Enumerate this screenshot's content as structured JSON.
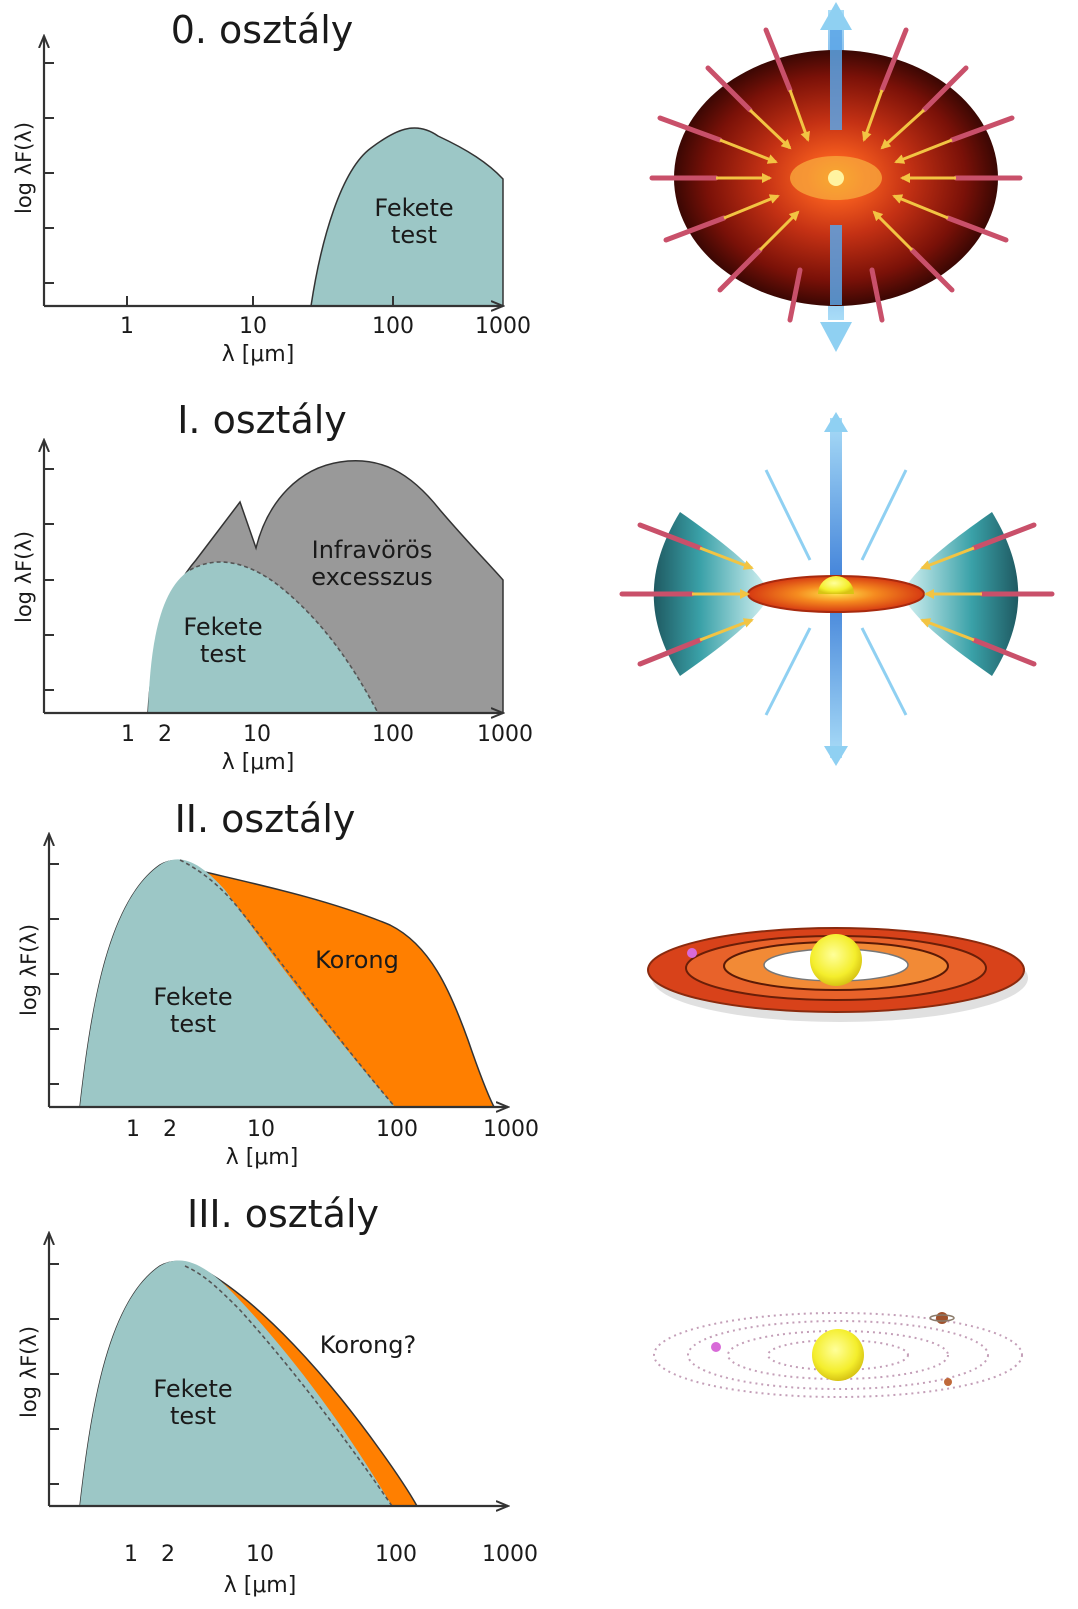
{
  "panels": [
    {
      "title": "0. osztály",
      "ylabel": "log λF(λ)",
      "xlabel": "λ [μm]",
      "xticks": [
        "1",
        "10",
        "100",
        "1000"
      ],
      "regions": [
        {
          "lines": [
            "Fekete",
            "test"
          ]
        }
      ]
    },
    {
      "title": "I. osztály",
      "ylabel": "log λF(λ)",
      "xlabel": "λ [μm]",
      "xticks": [
        "1",
        "2",
        "10",
        "100",
        "1000"
      ],
      "regions": [
        {
          "lines": [
            "Fekete",
            "test"
          ]
        },
        {
          "lines": [
            "Infravörös",
            "excesszus"
          ]
        }
      ]
    },
    {
      "title": "II. osztály",
      "ylabel": "log λF(λ)",
      "xlabel": "λ [μm]",
      "xticks": [
        "1",
        "2",
        "10",
        "100",
        "1000"
      ],
      "regions": [
        {
          "lines": [
            "Fekete",
            "test"
          ]
        },
        {
          "lines": [
            "Korong"
          ]
        }
      ]
    },
    {
      "title": "III. osztály",
      "ylabel": "log λF(λ)",
      "xlabel": "λ [μm]",
      "xticks": [
        "1",
        "2",
        "10",
        "100",
        "1000"
      ],
      "regions": [
        {
          "lines": [
            "Fekete",
            "test"
          ]
        },
        {
          "lines": [
            "Korong?"
          ]
        }
      ]
    }
  ],
  "colors": {
    "blackbody": "#9cc7c6",
    "excess": "#999999",
    "disk": "#ff7f00",
    "envelope": "#c0392b",
    "star": "#f7f13a",
    "jet": "#7cc8f0"
  },
  "illustrations": [
    "protostar-envelope-illustration",
    "bipolar-outflow-illustration",
    "protoplanetary-disk-illustration",
    "planetary-system-illustration"
  ]
}
